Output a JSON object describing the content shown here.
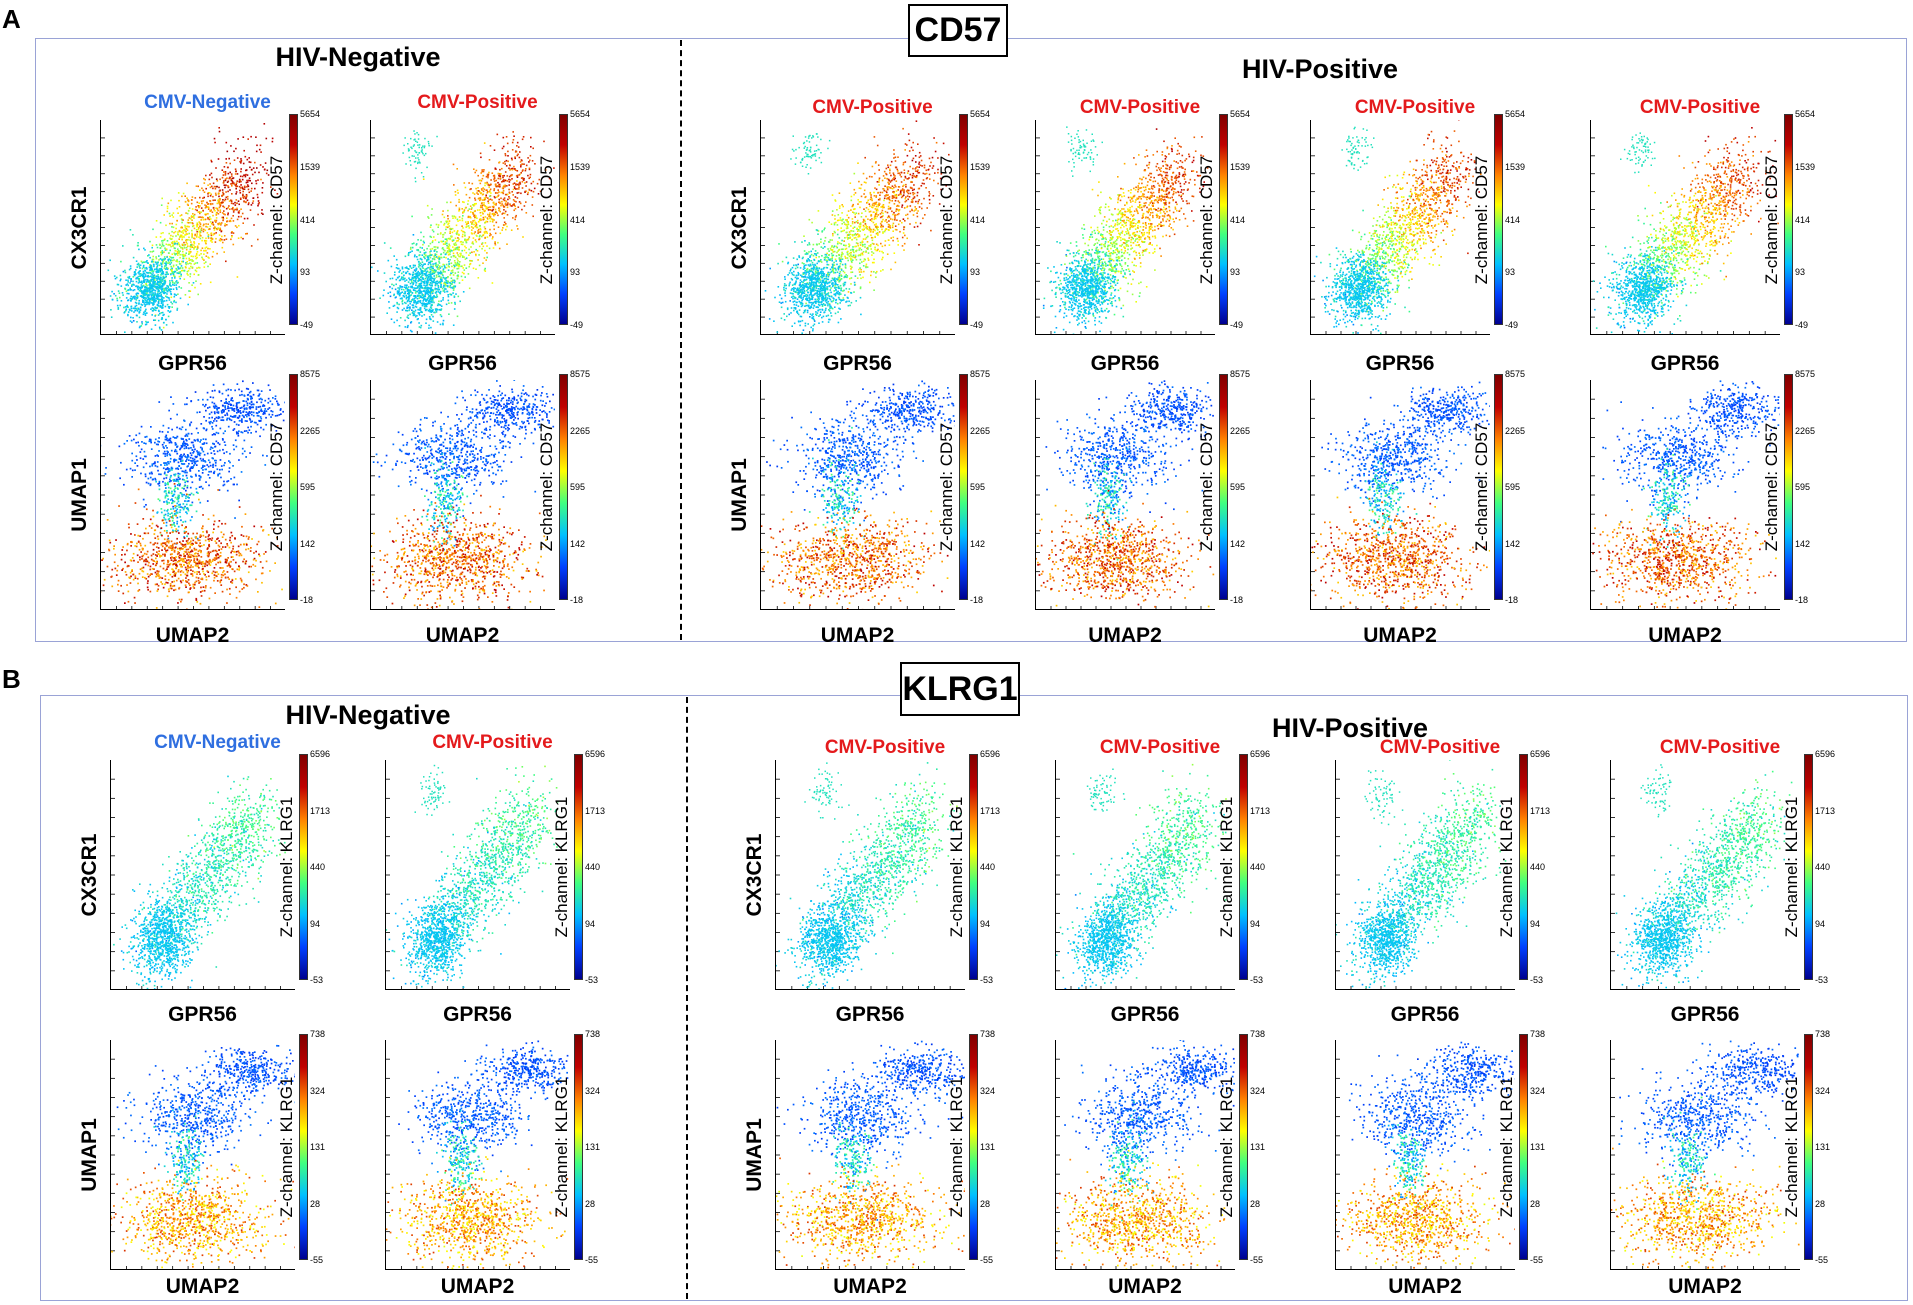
{
  "panels": [
    {
      "label": "A",
      "title": "CD57",
      "groups": {
        "neg": "HIV-Negative",
        "pos": "HIV-Positive"
      },
      "z_marker": "Z-channel: CD57",
      "scatter_ticks": [
        "5654",
        "1539",
        "414",
        "93",
        "-49"
      ],
      "umap_ticks": [
        "8575",
        "2265",
        "595",
        "142",
        "-18"
      ],
      "columns": [
        {
          "cmv": "CMV-Negative",
          "cmv_color": "#2f6fe0"
        },
        {
          "cmv": "CMV-Positive",
          "cmv_color": "#e41a1c"
        },
        {
          "cmv": "CMV-Positive",
          "cmv_color": "#e41a1c"
        },
        {
          "cmv": "CMV-Positive",
          "cmv_color": "#e41a1c"
        },
        {
          "cmv": "CMV-Positive",
          "cmv_color": "#e41a1c"
        },
        {
          "cmv": "CMV-Positive",
          "cmv_color": "#e41a1c"
        }
      ]
    },
    {
      "label": "B",
      "title": "KLRG1",
      "groups": {
        "neg": "HIV-Negative",
        "pos": "HIV-Positive"
      },
      "z_marker": "Z-channel: KLRG1",
      "scatter_ticks": [
        "6596",
        "1713",
        "440",
        "94",
        "-53"
      ],
      "umap_ticks": [
        "738",
        "324",
        "131",
        "28",
        "-55"
      ],
      "columns": [
        {
          "cmv": "CMV-Negative",
          "cmv_color": "#2f6fe0"
        },
        {
          "cmv": "CMV-Positive",
          "cmv_color": "#e41a1c"
        },
        {
          "cmv": "CMV-Positive",
          "cmv_color": "#e41a1c"
        },
        {
          "cmv": "CMV-Positive",
          "cmv_color": "#e41a1c"
        },
        {
          "cmv": "CMV-Positive",
          "cmv_color": "#e41a1c"
        },
        {
          "cmv": "CMV-Positive",
          "cmv_color": "#e41a1c"
        }
      ]
    }
  ],
  "axes": {
    "scatter_x": "GPR56",
    "scatter_y": "CX3CR1",
    "umap_x": "UMAP2",
    "umap_y": "UMAP1"
  },
  "colormap": [
    "#00008f",
    "#0040ff",
    "#00c0ff",
    "#40ff80",
    "#ffff00",
    "#ff8000",
    "#c00000",
    "#800000"
  ]
}
